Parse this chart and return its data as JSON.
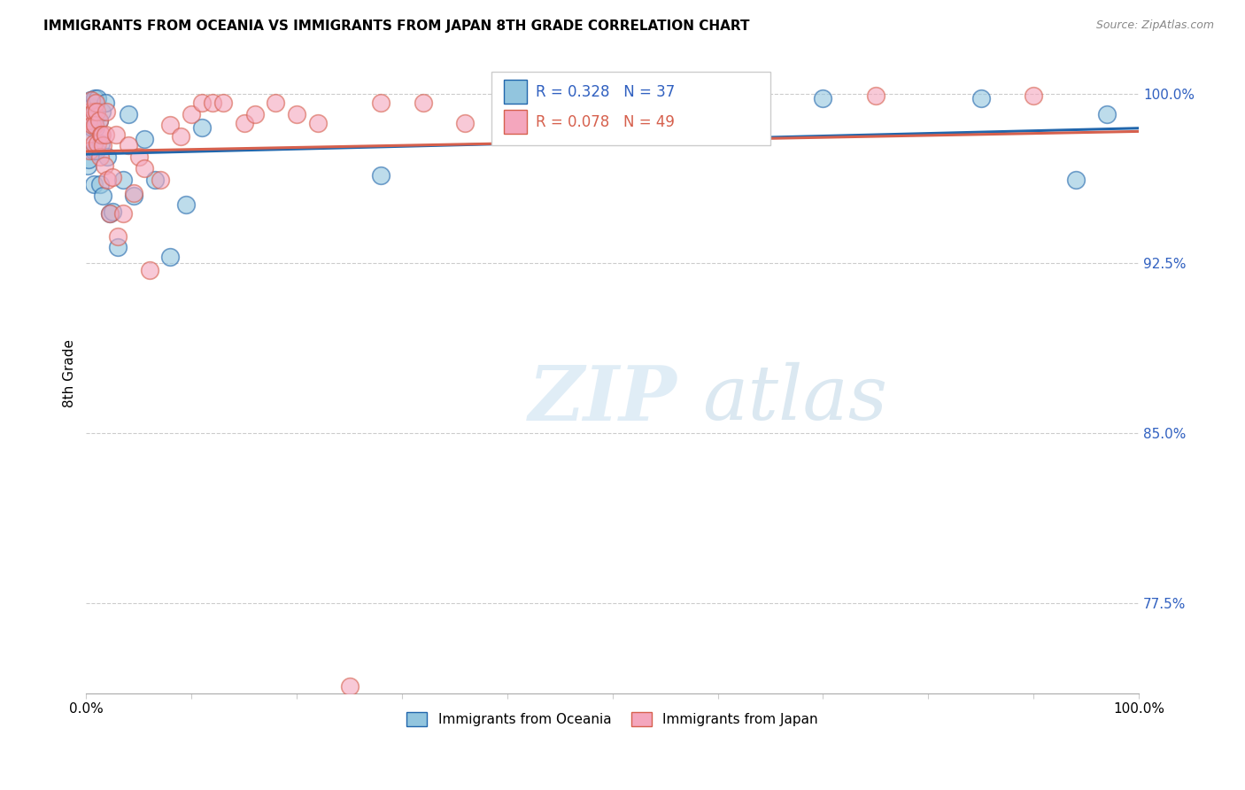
{
  "title": "IMMIGRANTS FROM OCEANIA VS IMMIGRANTS FROM JAPAN 8TH GRADE CORRELATION CHART",
  "source": "Source: ZipAtlas.com",
  "ylabel": "8th Grade",
  "ytick_values": [
    0.775,
    0.85,
    0.925,
    1.0
  ],
  "xlim": [
    0.0,
    1.0
  ],
  "ylim": [
    0.735,
    1.018
  ],
  "legend_label1": "Immigrants from Oceania",
  "legend_label2": "Immigrants from Japan",
  "R1": 0.328,
  "N1": 37,
  "R2": 0.078,
  "N2": 49,
  "color_oceania": "#92c5de",
  "color_japan": "#f4a6bd",
  "color_trendline_oceania": "#2166ac",
  "color_trendline_japan": "#d6604d",
  "watermark_zip": "ZIP",
  "watermark_atlas": "atlas",
  "oceania_x": [
    0.001,
    0.002,
    0.003,
    0.003,
    0.004,
    0.005,
    0.006,
    0.007,
    0.007,
    0.008,
    0.009,
    0.01,
    0.01,
    0.011,
    0.012,
    0.013,
    0.014,
    0.015,
    0.016,
    0.018,
    0.02,
    0.022,
    0.025,
    0.03,
    0.035,
    0.04,
    0.045,
    0.055,
    0.065,
    0.08,
    0.095,
    0.11,
    0.28,
    0.7,
    0.85,
    0.94,
    0.97
  ],
  "oceania_y": [
    0.968,
    0.971,
    0.99,
    0.98,
    0.997,
    0.994,
    0.985,
    0.96,
    0.975,
    0.998,
    0.985,
    0.975,
    0.99,
    0.998,
    0.988,
    0.96,
    0.978,
    0.992,
    0.955,
    0.996,
    0.972,
    0.947,
    0.948,
    0.932,
    0.962,
    0.991,
    0.955,
    0.98,
    0.962,
    0.928,
    0.951,
    0.985,
    0.964,
    0.998,
    0.998,
    0.962,
    0.991
  ],
  "japan_x": [
    0.001,
    0.002,
    0.003,
    0.004,
    0.005,
    0.006,
    0.007,
    0.007,
    0.008,
    0.009,
    0.01,
    0.011,
    0.012,
    0.013,
    0.014,
    0.015,
    0.016,
    0.017,
    0.018,
    0.019,
    0.02,
    0.022,
    0.025,
    0.028,
    0.03,
    0.035,
    0.04,
    0.045,
    0.05,
    0.055,
    0.06,
    0.07,
    0.08,
    0.09,
    0.1,
    0.11,
    0.12,
    0.13,
    0.15,
    0.16,
    0.18,
    0.2,
    0.22,
    0.25,
    0.28,
    0.32,
    0.36,
    0.75,
    0.9
  ],
  "japan_y": [
    0.982,
    0.988,
    0.975,
    0.992,
    0.997,
    0.986,
    0.978,
    0.992,
    0.986,
    0.996,
    0.992,
    0.978,
    0.988,
    0.972,
    0.982,
    0.982,
    0.977,
    0.968,
    0.982,
    0.992,
    0.962,
    0.947,
    0.963,
    0.982,
    0.937,
    0.947,
    0.977,
    0.956,
    0.972,
    0.967,
    0.922,
    0.962,
    0.986,
    0.981,
    0.991,
    0.996,
    0.996,
    0.996,
    0.987,
    0.991,
    0.996,
    0.991,
    0.987,
    0.738,
    0.996,
    0.996,
    0.987,
    0.999,
    0.999
  ]
}
